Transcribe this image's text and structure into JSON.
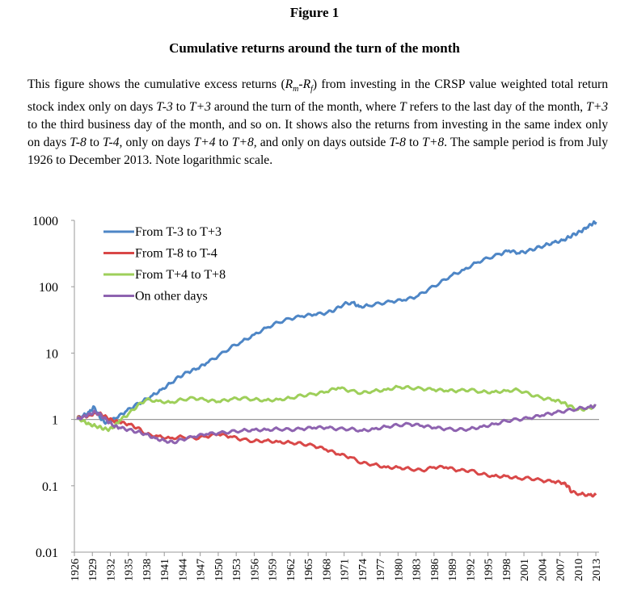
{
  "figure": {
    "label": "Figure 1",
    "title": "Cumulative returns around the turn of the month",
    "caption_parts": [
      {
        "t": "This figure shows the cumulative excess returns (",
        "i": false
      },
      {
        "t": "R",
        "i": true
      },
      {
        "t": "m",
        "i": true,
        "sub": true
      },
      {
        "t": "-",
        "i": false
      },
      {
        "t": "R",
        "i": true
      },
      {
        "t": "f",
        "i": true,
        "sub": true
      },
      {
        "t": ") from investing in the CRSP value weighted total return stock index only on days ",
        "i": false
      },
      {
        "t": "T-3",
        "i": true
      },
      {
        "t": " to ",
        "i": false
      },
      {
        "t": "T+3",
        "i": true
      },
      {
        "t": " around the turn of the month, where ",
        "i": false
      },
      {
        "t": "T",
        "i": true
      },
      {
        "t": " refers to the last day of the month, ",
        "i": false
      },
      {
        "t": "T+3",
        "i": true
      },
      {
        "t": " to the third business day of the month, and so on. It shows also the returns from investing in the same index only on days ",
        "i": false
      },
      {
        "t": "T-8",
        "i": true
      },
      {
        "t": " to ",
        "i": false
      },
      {
        "t": "T-4,",
        "i": true
      },
      {
        "t": " only on days ",
        "i": false
      },
      {
        "t": "T+4",
        "i": true
      },
      {
        "t": " to ",
        "i": false
      },
      {
        "t": "T+8,",
        "i": true
      },
      {
        "t": " and only on days outside ",
        "i": false
      },
      {
        "t": "T-8",
        "i": true
      },
      {
        "t": " to ",
        "i": false
      },
      {
        "t": "T+8",
        "i": true
      },
      {
        "t": ". The sample period is from July 1926 to December 2013. Note logarithmic scale.",
        "i": false
      }
    ]
  },
  "chart_data": {
    "type": "line",
    "title": "",
    "xlabel": "",
    "ylabel": "",
    "y_scale": "log",
    "ylim": [
      0.01,
      1000
    ],
    "y_ticks": [
      0.01,
      0.1,
      1,
      10,
      100,
      1000
    ],
    "y_tick_labels": [
      "0.01",
      "0.1",
      "1",
      "10",
      "100",
      "1000"
    ],
    "xlim": [
      1926,
      2013
    ],
    "x_ticks": [
      1926,
      1929,
      1932,
      1935,
      1938,
      1941,
      1944,
      1947,
      1950,
      1953,
      1956,
      1959,
      1962,
      1965,
      1968,
      1971,
      1974,
      1977,
      1980,
      1983,
      1986,
      1989,
      1992,
      1995,
      1998,
      2001,
      2004,
      2007,
      2010,
      2013
    ],
    "reference_line": {
      "y": 1,
      "color": "#999999"
    },
    "legend_position": "top-left",
    "series": [
      {
        "name": "From T-3 to T+3",
        "color": "#4e86c6",
        "x": [
          1926.5,
          1927.5,
          1928.5,
          1929.3,
          1930.2,
          1931.0,
          1932.0,
          1933.0,
          1934.5,
          1936.0,
          1937.5,
          1939.0,
          1940.5,
          1942.0,
          1943.5,
          1945.0,
          1946.5,
          1948.0,
          1950.0,
          1952.0,
          1954.0,
          1956.0,
          1958.0,
          1960.0,
          1962.0,
          1964.0,
          1966.0,
          1968.0,
          1969.5,
          1971.0,
          1972.5,
          1973.5,
          1975.0,
          1977.0,
          1979.0,
          1981.0,
          1983.0,
          1985.0,
          1987.0,
          1989.0,
          1991.0,
          1993.0,
          1995.0,
          1997.0,
          1998.5,
          2000.0,
          2001.5,
          2003.0,
          2004.5,
          2006.0,
          2007.5,
          2008.5,
          2009.5,
          2010.5,
          2011.5,
          2012.5,
          2013.0
        ],
        "values": [
          1.05,
          1.15,
          1.3,
          1.55,
          1.1,
          0.9,
          0.95,
          1.05,
          1.3,
          1.6,
          1.9,
          2.3,
          2.8,
          3.5,
          4.4,
          5.2,
          5.8,
          7.0,
          9.0,
          12.0,
          15.0,
          19.0,
          24.0,
          29.0,
          33.0,
          36.0,
          38.0,
          40.0,
          45.0,
          55.0,
          58.0,
          50.0,
          52.0,
          56.0,
          60.0,
          63.0,
          70.0,
          90.0,
          115.0,
          150.0,
          180.0,
          230.0,
          270.0,
          310.0,
          350.0,
          320.0,
          340.0,
          380.0,
          420.0,
          470.0,
          500.0,
          560.0,
          620.0,
          680.0,
          780.0,
          900.0,
          950.0
        ]
      },
      {
        "name": "From T-8 to T-4",
        "color": "#d94848",
        "x": [
          1926.5,
          1927.5,
          1928.5,
          1929.5,
          1930.5,
          1931.5,
          1932.5,
          1933.5,
          1935.0,
          1936.5,
          1938.0,
          1940.0,
          1942.0,
          1944.0,
          1946.0,
          1948.0,
          1950.0,
          1952.0,
          1954.0,
          1956.0,
          1958.0,
          1960.0,
          1962.0,
          1964.0,
          1966.0,
          1968.0,
          1970.0,
          1972.0,
          1974.0,
          1976.0,
          1978.0,
          1980.0,
          1982.0,
          1984.0,
          1986.0,
          1988.0,
          1990.0,
          1992.0,
          1994.0,
          1996.0,
          1998.0,
          2000.0,
          2002.0,
          2004.0,
          2006.0,
          2007.5,
          2008.3,
          2009.0,
          2010.5,
          2012.0,
          2013.0
        ],
        "values": [
          1.05,
          1.1,
          1.15,
          1.25,
          1.2,
          1.05,
          0.95,
          0.9,
          0.85,
          0.75,
          0.6,
          0.56,
          0.52,
          0.55,
          0.52,
          0.55,
          0.6,
          0.55,
          0.5,
          0.47,
          0.48,
          0.46,
          0.45,
          0.43,
          0.4,
          0.35,
          0.3,
          0.27,
          0.22,
          0.21,
          0.19,
          0.19,
          0.18,
          0.17,
          0.19,
          0.19,
          0.17,
          0.17,
          0.15,
          0.14,
          0.14,
          0.13,
          0.13,
          0.12,
          0.115,
          0.11,
          0.1,
          0.08,
          0.075,
          0.073,
          0.072
        ]
      },
      {
        "name": "From T+4 to T+8",
        "color": "#9ecf5a",
        "x": [
          1926.5,
          1927.5,
          1928.5,
          1929.5,
          1930.5,
          1931.5,
          1932.5,
          1933.5,
          1935.0,
          1936.5,
          1938.0,
          1940.0,
          1942.0,
          1944.0,
          1946.0,
          1948.0,
          1950.0,
          1952.0,
          1954.0,
          1956.0,
          1958.0,
          1960.0,
          1962.0,
          1964.0,
          1966.0,
          1968.0,
          1970.0,
          1972.0,
          1974.0,
          1976.0,
          1978.0,
          1980.0,
          1982.0,
          1984.0,
          1986.0,
          1988.0,
          1990.0,
          1992.0,
          1994.0,
          1996.0,
          1998.0,
          2000.0,
          2002.0,
          2004.0,
          2006.0,
          2007.5,
          2008.5,
          2010.0,
          2011.5,
          2013.0
        ],
        "values": [
          1.05,
          0.95,
          0.85,
          0.8,
          0.75,
          0.7,
          0.75,
          0.95,
          1.2,
          1.6,
          2.0,
          1.9,
          1.8,
          2.0,
          2.1,
          1.95,
          1.85,
          2.0,
          2.1,
          2.0,
          1.95,
          2.0,
          2.1,
          2.3,
          2.4,
          2.6,
          3.0,
          2.7,
          2.5,
          2.7,
          2.8,
          3.1,
          3.0,
          2.9,
          2.8,
          2.7,
          2.7,
          2.8,
          2.6,
          2.6,
          2.7,
          2.8,
          2.4,
          2.1,
          1.95,
          1.8,
          1.6,
          1.4,
          1.45,
          1.6
        ]
      },
      {
        "name": "On other days",
        "color": "#8e63b0",
        "x": [
          1926.5,
          1927.5,
          1928.5,
          1929.5,
          1930.5,
          1931.5,
          1932.5,
          1933.5,
          1935.0,
          1936.5,
          1938.0,
          1939.5,
          1941.0,
          1942.5,
          1944.0,
          1946.0,
          1948.0,
          1950.0,
          1952.0,
          1954.0,
          1956.0,
          1958.0,
          1960.0,
          1962.0,
          1964.0,
          1966.0,
          1968.0,
          1970.0,
          1972.0,
          1974.0,
          1976.0,
          1978.0,
          1980.0,
          1982.0,
          1984.0,
          1986.0,
          1988.0,
          1990.0,
          1992.0,
          1994.0,
          1996.0,
          1998.0,
          2000.0,
          2002.0,
          2004.0,
          2006.0,
          2008.0,
          2010.0,
          2012.0,
          2013.0
        ],
        "values": [
          1.0,
          1.1,
          1.2,
          1.3,
          1.15,
          0.95,
          0.8,
          0.75,
          0.7,
          0.65,
          0.6,
          0.52,
          0.48,
          0.45,
          0.5,
          0.55,
          0.6,
          0.62,
          0.65,
          0.68,
          0.7,
          0.7,
          0.72,
          0.7,
          0.72,
          0.75,
          0.75,
          0.72,
          0.72,
          0.68,
          0.72,
          0.78,
          0.82,
          0.85,
          0.8,
          0.75,
          0.72,
          0.7,
          0.72,
          0.78,
          0.85,
          0.95,
          1.0,
          1.05,
          1.15,
          1.25,
          1.35,
          1.45,
          1.55,
          1.6
        ]
      }
    ]
  }
}
